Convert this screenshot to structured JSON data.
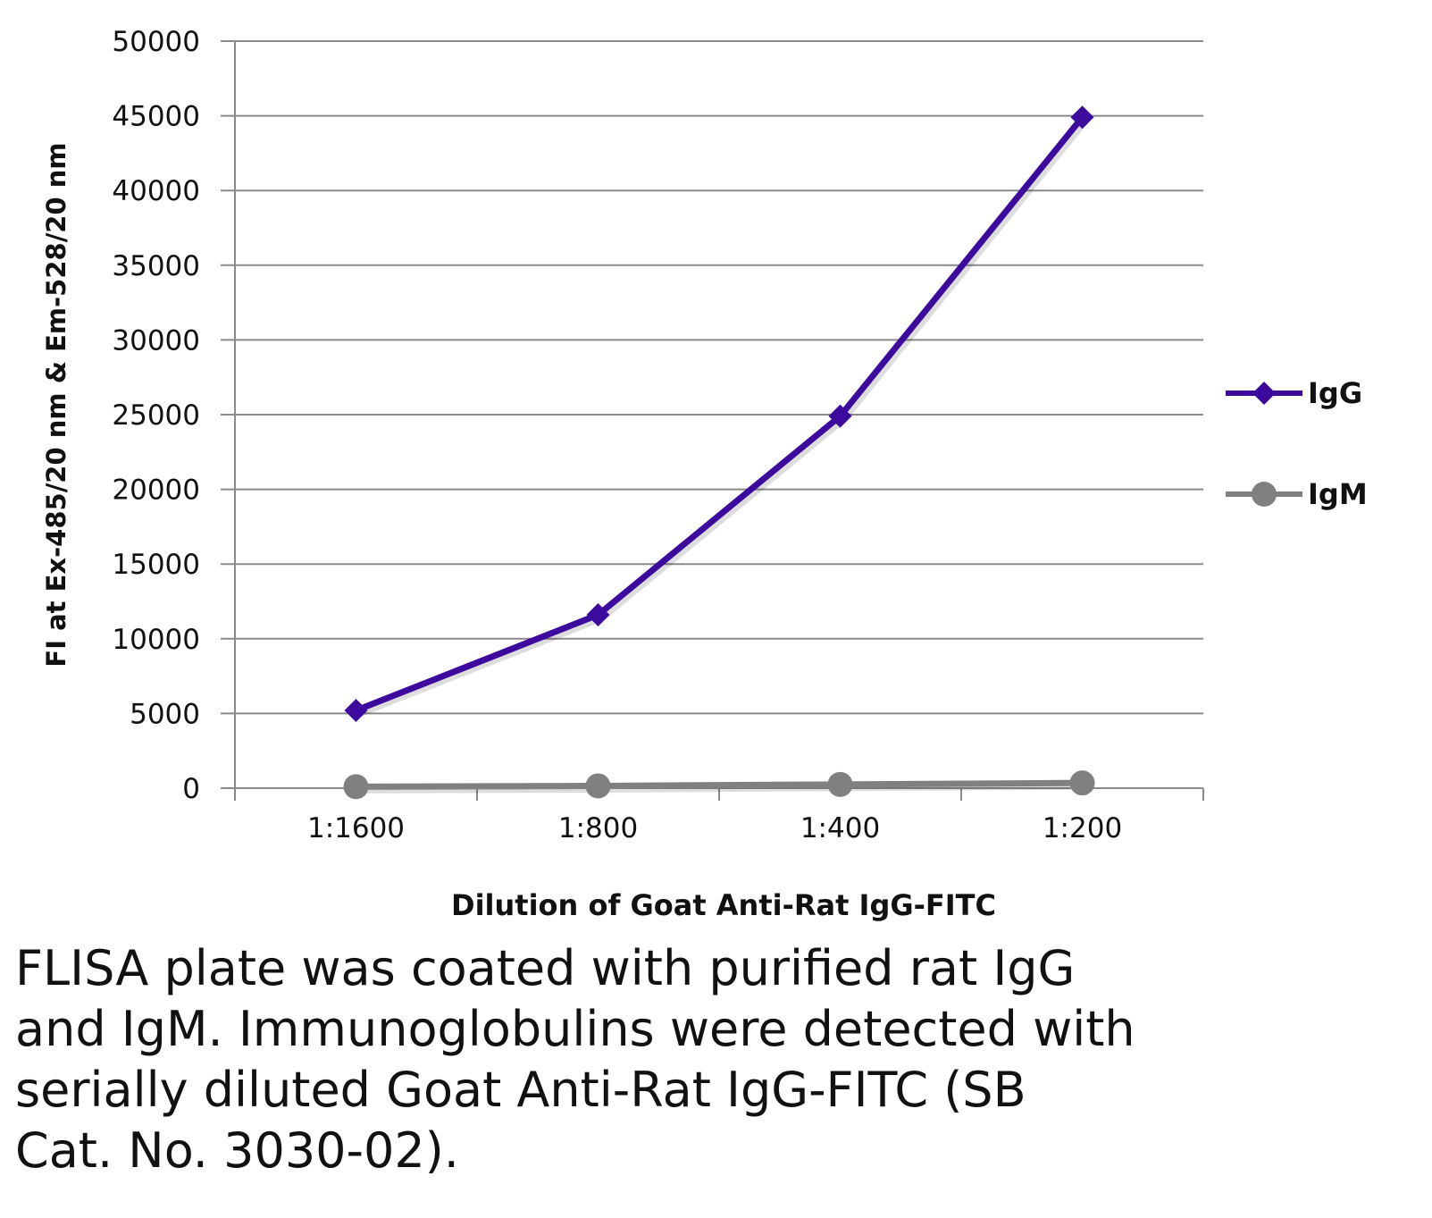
{
  "chart_data": {
    "type": "line",
    "categories": [
      "1:1600",
      "1:800",
      "1:400",
      "1:200"
    ],
    "series": [
      {
        "name": "IgG",
        "values": [
          5200,
          11600,
          24900,
          44900
        ],
        "color": "#3d0a9e",
        "marker": "diamond"
      },
      {
        "name": "IgM",
        "values": [
          100,
          150,
          250,
          350
        ],
        "color": "#808080",
        "marker": "circle"
      }
    ],
    "title": "",
    "xlabel": "Dilution of Goat Anti-Rat IgG-FITC",
    "ylabel": "FI at Ex-485/20 nm & Em-528/20 nm",
    "ylim": [
      0,
      50000
    ],
    "yticks": [
      "0",
      "5000",
      "10000",
      "15000",
      "20000",
      "25000",
      "30000",
      "35000",
      "40000",
      "45000",
      "50000"
    ],
    "grid": true,
    "legend": "right"
  },
  "caption": [
    "FLISA plate was coated with purified rat IgG",
    "and IgM.  Immunoglobulins were detected with",
    "serially diluted Goat Anti-Rat IgG-FITC (SB",
    "Cat. No. 3030-02)."
  ]
}
